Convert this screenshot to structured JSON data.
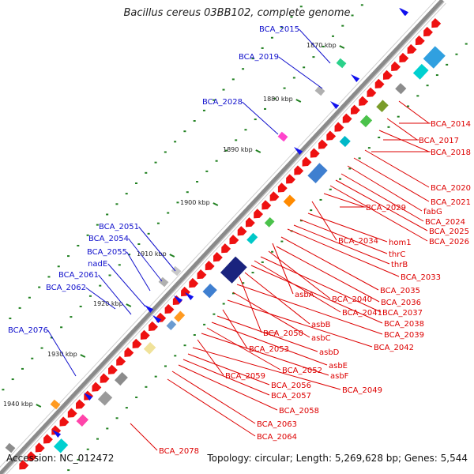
{
  "title": "Bacillus cereus 03BB102, complete genome",
  "footer": {
    "accession": "Accession: NC_012472",
    "summary": "Topology: circular; Length: 5,269,628 bp; Genes: 5,544"
  },
  "colors": {
    "reverse_label": "#1010cc",
    "forward_label": "#dd0000",
    "tick": "#208020",
    "backbone": "#8a8a8a"
  },
  "kbp_ticks": [
    "1870 kbp",
    "1880 kbp",
    "1890 kbp",
    "1900 kbp",
    "1910 kbp",
    "1920 kbp",
    "1930 kbp",
    "1940 kbp"
  ],
  "left_labels": [
    "BCA_2015",
    "BCA_2019",
    "BCA_2028",
    "BCA_2051",
    "BCA_2054",
    "BCA_2055",
    "nadE",
    "BCA_2061",
    "BCA_2062",
    "BCA_2076"
  ],
  "right_labels": [
    "BCA_2014",
    "BCA_2017",
    "BCA_2018",
    "BCA_2020",
    "BCA_2021",
    "fabG",
    "BCA_2024",
    "BCA_2025",
    "BCA_2026",
    "BCA_2029",
    "BCA_2034",
    "hom1",
    "thrC",
    "thrB",
    "BCA_2033",
    "BCA_2035",
    "asbA",
    "BCA_2040",
    "BCA_2036",
    "BCA_2037",
    "BCA_2041",
    "BCA_2038",
    "asbB",
    "BCA_2050",
    "BCA_2039",
    "asbC",
    "BCA_2042",
    "BCA_2053",
    "asbD",
    "asbE",
    "BCA_2052",
    "asbF",
    "BCA_2059",
    "BCA_2049",
    "BCA_2056",
    "BCA_2057",
    "BCA_2058",
    "BCA_2063",
    "BCA_2064",
    "BCA_2078"
  ]
}
